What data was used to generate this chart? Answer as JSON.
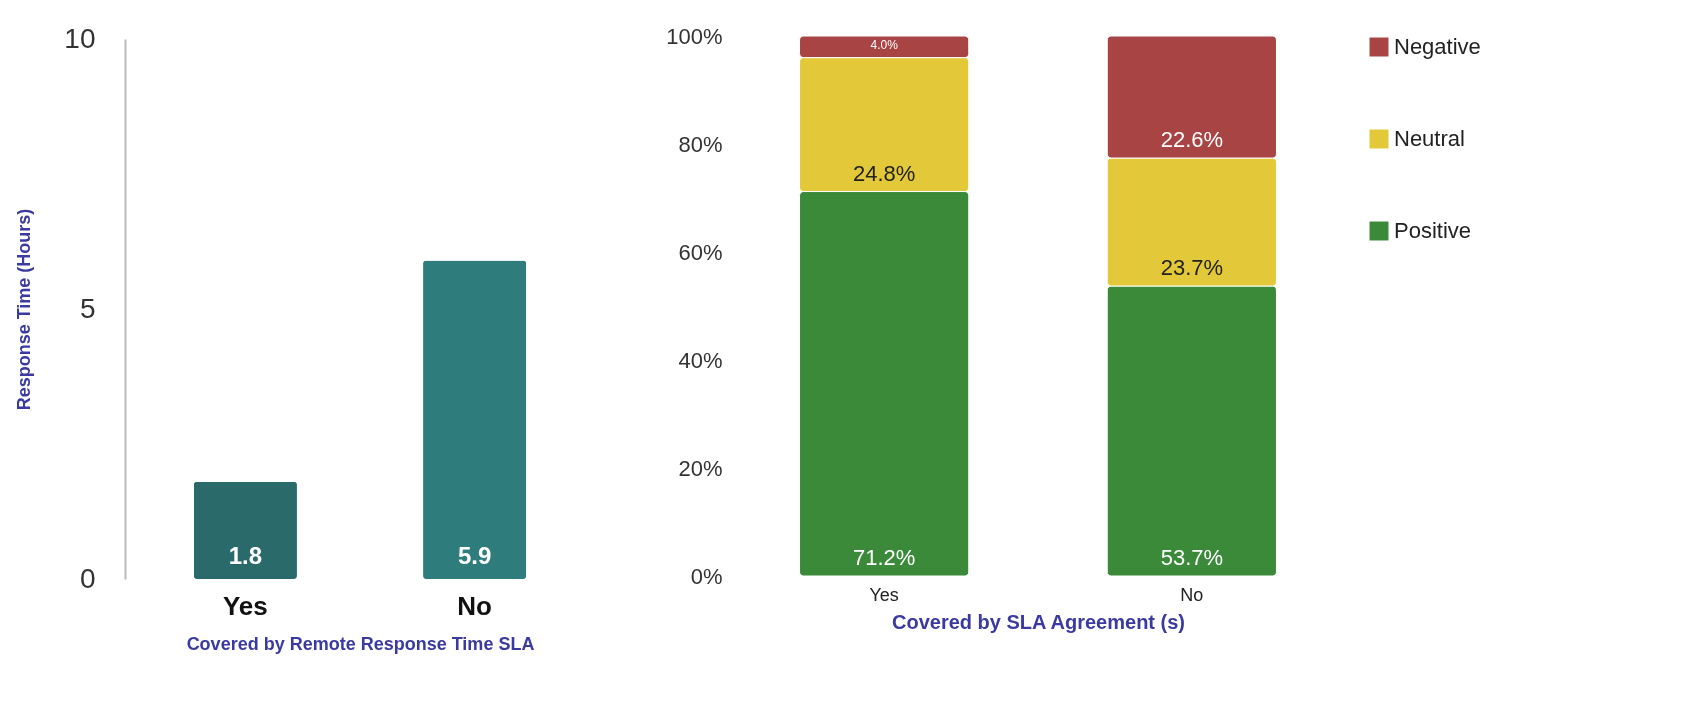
{
  "chart_data": [
    {
      "type": "bar",
      "categories": [
        "Yes",
        "No"
      ],
      "values": [
        1.8,
        5.9
      ],
      "colors": [
        "#2b6a6a",
        "#2f7c7c"
      ],
      "ylim": [
        0,
        10
      ],
      "yticks": [
        0,
        5,
        10
      ],
      "ylabel": "Response Time (Hours)",
      "xlabel": "Covered by Remote Response Time SLA",
      "data_labels": true
    },
    {
      "type": "bar",
      "stacked": true,
      "categories": [
        "Yes",
        "No"
      ],
      "ylim": [
        0,
        100
      ],
      "yticks": [
        {
          "value": 0,
          "label": "0%"
        },
        {
          "value": 20,
          "label": "20%"
        },
        {
          "value": 40,
          "label": "40%"
        },
        {
          "value": 60,
          "label": "60%"
        },
        {
          "value": 80,
          "label": "80%"
        },
        {
          "value": 100,
          "label": "100%"
        }
      ],
      "xlabel": "Covered by SLA Agreement (s)",
      "legend": "right",
      "series": [
        {
          "name": "Positive",
          "color": "#3a8a3a",
          "values": [
            71.2,
            53.7
          ],
          "value_labels": [
            "71.2%",
            "53.7%"
          ]
        },
        {
          "name": "Neutral",
          "color": "#e3c93a",
          "values": [
            24.8,
            23.7
          ],
          "value_labels": [
            "24.8%",
            "23.7%"
          ]
        },
        {
          "name": "Negative",
          "color": "#a84444",
          "values": [
            4.0,
            22.6
          ],
          "value_labels": [
            "4.0%",
            "22.6%"
          ]
        }
      ]
    }
  ]
}
